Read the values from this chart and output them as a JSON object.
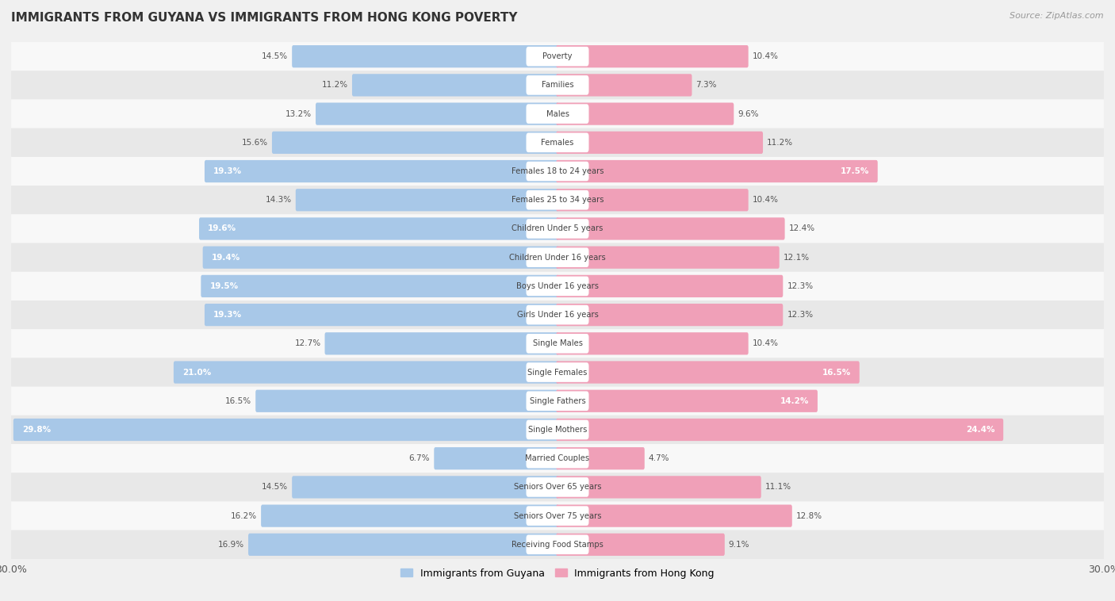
{
  "title": "IMMIGRANTS FROM GUYANA VS IMMIGRANTS FROM HONG KONG POVERTY",
  "source": "Source: ZipAtlas.com",
  "categories": [
    "Poverty",
    "Families",
    "Males",
    "Females",
    "Females 18 to 24 years",
    "Females 25 to 34 years",
    "Children Under 5 years",
    "Children Under 16 years",
    "Boys Under 16 years",
    "Girls Under 16 years",
    "Single Males",
    "Single Females",
    "Single Fathers",
    "Single Mothers",
    "Married Couples",
    "Seniors Over 65 years",
    "Seniors Over 75 years",
    "Receiving Food Stamps"
  ],
  "guyana_values": [
    14.5,
    11.2,
    13.2,
    15.6,
    19.3,
    14.3,
    19.6,
    19.4,
    19.5,
    19.3,
    12.7,
    21.0,
    16.5,
    29.8,
    6.7,
    14.5,
    16.2,
    16.9
  ],
  "hongkong_values": [
    10.4,
    7.3,
    9.6,
    11.2,
    17.5,
    10.4,
    12.4,
    12.1,
    12.3,
    12.3,
    10.4,
    16.5,
    14.2,
    24.4,
    4.7,
    11.1,
    12.8,
    9.1
  ],
  "guyana_color": "#a8c8e8",
  "hongkong_color": "#f0a0b8",
  "background_color": "#f0f0f0",
  "row_color_light": "#f8f8f8",
  "row_color_dark": "#e8e8e8",
  "xlim": 30.0,
  "bar_height": 0.62,
  "label_threshold_guyana": 17.0,
  "label_threshold_hk": 14.0,
  "legend_guyana": "Immigrants from Guyana",
  "legend_hongkong": "Immigrants from Hong Kong"
}
